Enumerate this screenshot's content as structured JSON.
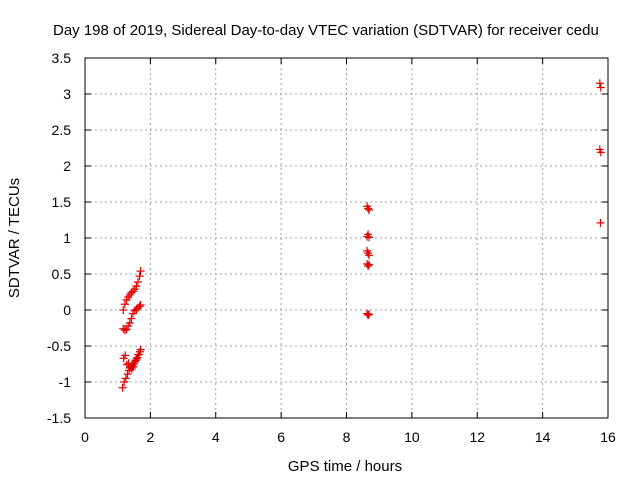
{
  "chart_data": {
    "type": "scatter",
    "title": "Day 198 of 2019, Sidereal Day-to-day VTEC variation (SDTVAR) for receiver cedu",
    "xlabel": "GPS time / hours",
    "ylabel": "SDTVAR / TECUs",
    "xlim": [
      0,
      16
    ],
    "ylim": [
      -1.5,
      3.5
    ],
    "xticks": [
      "0",
      "2",
      "4",
      "6",
      "8",
      "10",
      "12",
      "14",
      "16"
    ],
    "yticks": [
      "-1.5",
      "-1",
      "-0.5",
      "0",
      "0.5",
      "1",
      "1.5",
      "2",
      "2.5",
      "3",
      "3.5"
    ],
    "grid": true,
    "marker": "+",
    "color": "#e00000",
    "series": [
      {
        "x": [
          1.17,
          1.22,
          1.27,
          1.32,
          1.37,
          1.42,
          1.47,
          1.52,
          1.57,
          1.62,
          1.67,
          1.7,
          1.17,
          1.22,
          1.27,
          1.32,
          1.37,
          1.42,
          1.47,
          1.52,
          1.57,
          1.62,
          1.67,
          1.7,
          1.15,
          1.2,
          1.25,
          1.3,
          1.35,
          1.4,
          1.45,
          1.5,
          1.55,
          1.6,
          1.65,
          1.7,
          1.18,
          1.23,
          1.28,
          1.33,
          1.38,
          1.43,
          1.48,
          1.53,
          1.58,
          1.63,
          1.68,
          8.63,
          8.66,
          8.69,
          8.63,
          8.66,
          8.69,
          8.63,
          8.66,
          8.69,
          8.63,
          8.66,
          8.69,
          8.63,
          8.66,
          8.69,
          15.75,
          15.78,
          15.75,
          15.78,
          15.77
        ],
        "y": [
          0.0,
          0.08,
          0.14,
          0.18,
          0.21,
          0.24,
          0.26,
          0.29,
          0.33,
          0.39,
          0.47,
          0.54,
          -0.26,
          -0.28,
          -0.27,
          -0.22,
          -0.18,
          -0.12,
          -0.05,
          -0.01,
          0.01,
          0.03,
          0.05,
          0.07,
          -1.08,
          -1.0,
          -0.95,
          -0.89,
          -0.84,
          -0.79,
          -0.78,
          -0.75,
          -0.7,
          -0.66,
          -0.62,
          -0.55,
          -0.67,
          -0.63,
          -0.76,
          -0.74,
          -0.8,
          -0.82,
          -0.79,
          -0.72,
          -0.68,
          -0.62,
          -0.58,
          1.44,
          1.41,
          1.39,
          1.02,
          1.05,
          1.01,
          0.82,
          0.79,
          0.76,
          0.64,
          0.61,
          0.63,
          -0.05,
          -0.07,
          -0.06,
          3.15,
          3.09,
          2.23,
          2.19,
          1.21
        ]
      }
    ]
  }
}
